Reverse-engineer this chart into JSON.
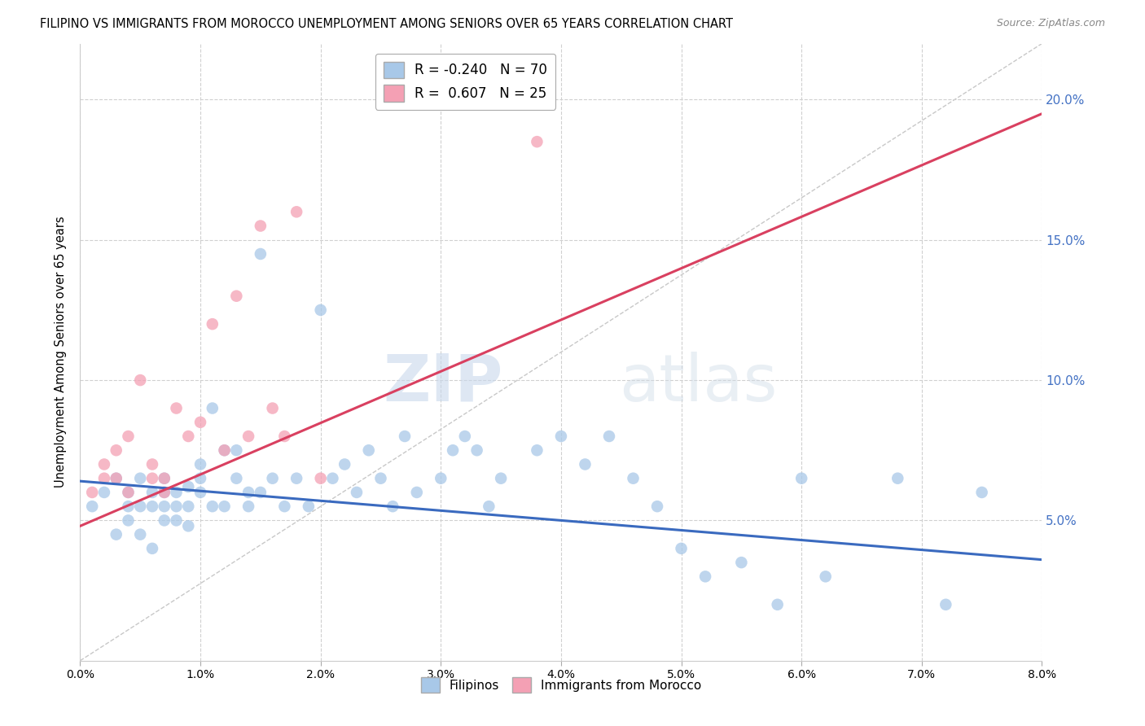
{
  "title": "FILIPINO VS IMMIGRANTS FROM MOROCCO UNEMPLOYMENT AMONG SENIORS OVER 65 YEARS CORRELATION CHART",
  "source": "Source: ZipAtlas.com",
  "ylabel": "Unemployment Among Seniors over 65 years",
  "xlim": [
    0.0,
    0.08
  ],
  "ylim": [
    0.0,
    0.22
  ],
  "yticks": [
    0.05,
    0.1,
    0.15,
    0.2
  ],
  "xticks": [
    0.0,
    0.01,
    0.02,
    0.03,
    0.04,
    0.05,
    0.06,
    0.07,
    0.08
  ],
  "xtick_labels": [
    "0.0%",
    "1.0%",
    "2.0%",
    "3.0%",
    "4.0%",
    "5.0%",
    "6.0%",
    "7.0%",
    "8.0%"
  ],
  "ytick_labels": [
    "5.0%",
    "10.0%",
    "15.0%",
    "20.0%"
  ],
  "blue_color": "#a8c8e8",
  "pink_color": "#f4a0b4",
  "blue_line_color": "#3a6abf",
  "pink_line_color": "#d94060",
  "diag_line_color": "#c8c8c8",
  "axis_color": "#4472c4",
  "R_blue": "-0.240",
  "N_blue": 70,
  "R_pink": "0.607",
  "N_pink": 25,
  "legend_label_blue": "Filipinos",
  "legend_label_pink": "Immigrants from Morocco",
  "watermark_zip": "ZIP",
  "watermark_atlas": "atlas",
  "blue_scatter_x": [
    0.001,
    0.002,
    0.003,
    0.003,
    0.004,
    0.004,
    0.004,
    0.005,
    0.005,
    0.005,
    0.006,
    0.006,
    0.006,
    0.007,
    0.007,
    0.007,
    0.007,
    0.008,
    0.008,
    0.008,
    0.009,
    0.009,
    0.009,
    0.01,
    0.01,
    0.01,
    0.011,
    0.011,
    0.012,
    0.012,
    0.013,
    0.013,
    0.014,
    0.014,
    0.015,
    0.015,
    0.016,
    0.017,
    0.018,
    0.019,
    0.02,
    0.021,
    0.022,
    0.023,
    0.024,
    0.025,
    0.026,
    0.027,
    0.028,
    0.03,
    0.031,
    0.032,
    0.033,
    0.034,
    0.035,
    0.038,
    0.04,
    0.042,
    0.044,
    0.046,
    0.048,
    0.05,
    0.052,
    0.055,
    0.058,
    0.06,
    0.062,
    0.068,
    0.072,
    0.075
  ],
  "blue_scatter_y": [
    0.055,
    0.06,
    0.065,
    0.045,
    0.055,
    0.05,
    0.06,
    0.055,
    0.065,
    0.045,
    0.06,
    0.055,
    0.04,
    0.06,
    0.05,
    0.055,
    0.065,
    0.055,
    0.06,
    0.05,
    0.055,
    0.048,
    0.062,
    0.065,
    0.07,
    0.06,
    0.09,
    0.055,
    0.075,
    0.055,
    0.065,
    0.075,
    0.055,
    0.06,
    0.06,
    0.145,
    0.065,
    0.055,
    0.065,
    0.055,
    0.125,
    0.065,
    0.07,
    0.06,
    0.075,
    0.065,
    0.055,
    0.08,
    0.06,
    0.065,
    0.075,
    0.08,
    0.075,
    0.055,
    0.065,
    0.075,
    0.08,
    0.07,
    0.08,
    0.065,
    0.055,
    0.04,
    0.03,
    0.035,
    0.02,
    0.065,
    0.03,
    0.065,
    0.02,
    0.06
  ],
  "pink_scatter_x": [
    0.001,
    0.002,
    0.002,
    0.003,
    0.003,
    0.004,
    0.004,
    0.005,
    0.006,
    0.006,
    0.007,
    0.007,
    0.008,
    0.009,
    0.01,
    0.011,
    0.012,
    0.013,
    0.014,
    0.015,
    0.016,
    0.017,
    0.018,
    0.02,
    0.038
  ],
  "pink_scatter_y": [
    0.06,
    0.065,
    0.07,
    0.075,
    0.065,
    0.08,
    0.06,
    0.1,
    0.07,
    0.065,
    0.065,
    0.06,
    0.09,
    0.08,
    0.085,
    0.12,
    0.075,
    0.13,
    0.08,
    0.155,
    0.09,
    0.08,
    0.16,
    0.065,
    0.185
  ],
  "blue_trend_x": [
    0.0,
    0.08
  ],
  "blue_trend_y": [
    0.064,
    0.036
  ],
  "pink_trend_x": [
    0.0,
    0.08
  ],
  "pink_trend_y": [
    0.048,
    0.195
  ]
}
